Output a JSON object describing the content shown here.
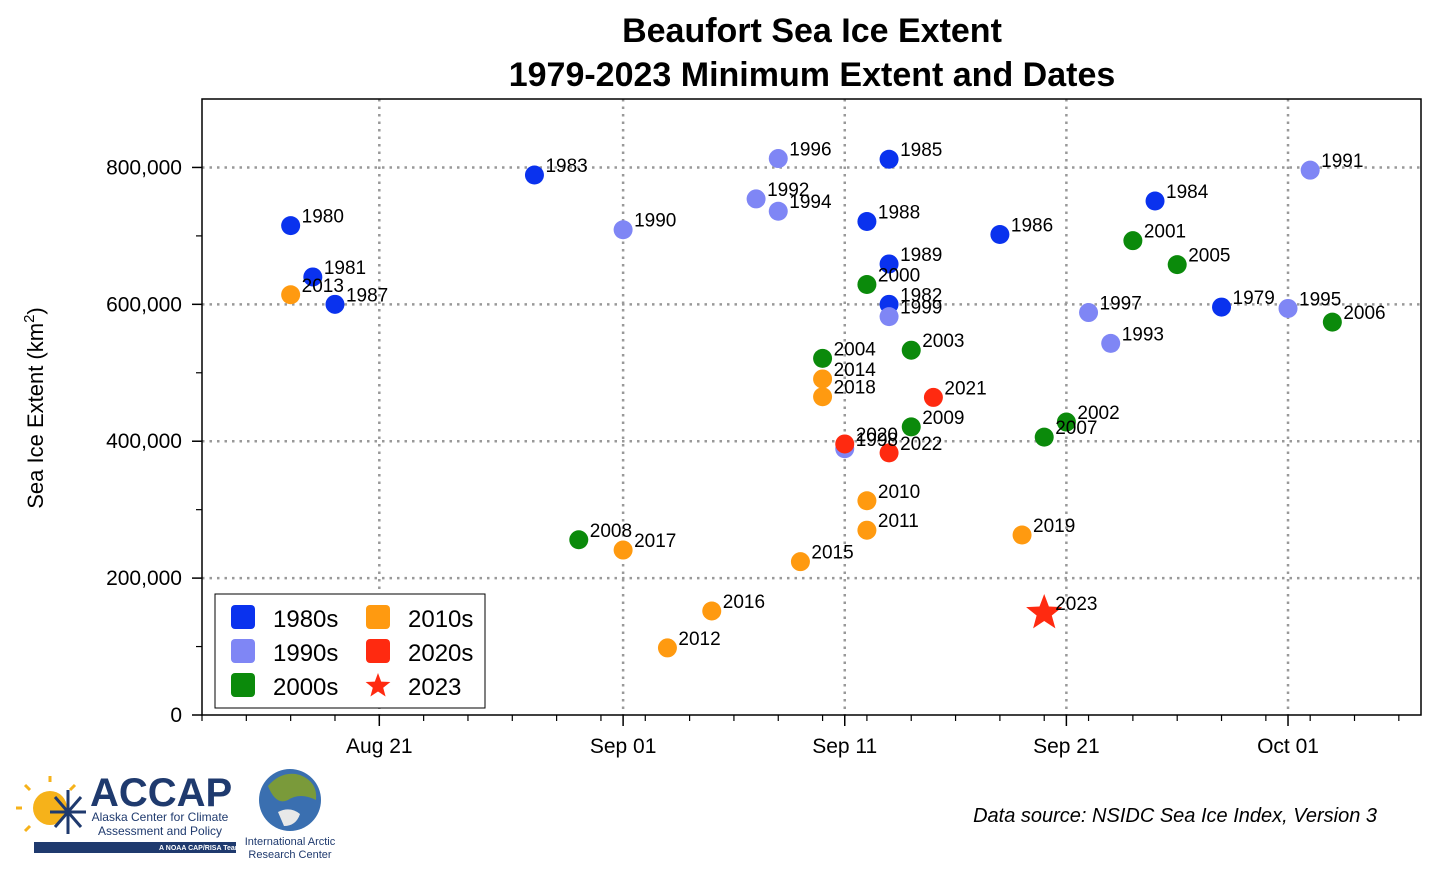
{
  "title_line1": "Beaufort Sea Ice Extent",
  "title_line2": "1979-2023 Minimum Extent and Dates",
  "source": "Data source: NSIDC Sea Ice Index, Version 3",
  "logos": {
    "accap_name": "ACCAP",
    "accap_sub1": "Alaska Center for Climate",
    "accap_sub2": "Assessment and Policy",
    "accap_tag": "A NOAA CAP/RISA Team",
    "iarc_line1": "International Arctic",
    "iarc_line2": "Research Center"
  },
  "colors": {
    "1980s": "#0a32ee",
    "1990s": "#7f86f5",
    "2000s": "#0b8a0b",
    "2010s": "#ff9a10",
    "2020s": "#ff2a10",
    "2023": "#ff2a10"
  },
  "chart_data": {
    "type": "scatter",
    "title": "Beaufort Sea Ice Extent\n1979-2023 Minimum Extent and Dates",
    "xlabel": "",
    "ylabel": "Sea Ice Extent (km²)",
    "ylabel_main": "Sea Ice Extent (km",
    "ylabel_sup": "2",
    "ylabel_close": ")",
    "x_axis": "date",
    "xlim": [
      "2023-08-13",
      "2023-10-07"
    ],
    "ylim": [
      0,
      900000
    ],
    "x_ticks": [
      {
        "date": "2023-08-21",
        "label": "Aug 21"
      },
      {
        "date": "2023-09-01",
        "label": "Sep 01"
      },
      {
        "date": "2023-09-11",
        "label": "Sep 11"
      },
      {
        "date": "2023-09-21",
        "label": "Sep 21"
      },
      {
        "date": "2023-10-01",
        "label": "Oct 01"
      }
    ],
    "y_ticks": [
      {
        "value": 0,
        "label": "0"
      },
      {
        "value": 200000,
        "label": "200,000"
      },
      {
        "value": 400000,
        "label": "400,000"
      },
      {
        "value": 600000,
        "label": "600,000"
      },
      {
        "value": 800000,
        "label": "800,000"
      }
    ],
    "grid": true,
    "legend_position": "bottom-left",
    "legend": [
      {
        "label": "1980s",
        "group": "1980s",
        "marker": "square"
      },
      {
        "label": "2010s",
        "group": "2010s",
        "marker": "square"
      },
      {
        "label": "1990s",
        "group": "1990s",
        "marker": "square"
      },
      {
        "label": "2020s",
        "group": "2020s",
        "marker": "square"
      },
      {
        "label": "2000s",
        "group": "2000s",
        "marker": "square"
      },
      {
        "label": "2023",
        "group": "2023",
        "marker": "star"
      }
    ],
    "points": [
      {
        "label": "1979",
        "date": "2023-09-28",
        "y": 596000,
        "group": "1980s"
      },
      {
        "label": "1980",
        "date": "2023-08-17",
        "y": 715000,
        "group": "1980s"
      },
      {
        "label": "1981",
        "date": "2023-08-18",
        "y": 640000,
        "group": "1980s"
      },
      {
        "label": "1982",
        "date": "2023-09-13",
        "y": 600000,
        "group": "1980s"
      },
      {
        "label": "1983",
        "date": "2023-08-28",
        "y": 789000,
        "group": "1980s"
      },
      {
        "label": "1984",
        "date": "2023-09-25",
        "y": 751000,
        "group": "1980s"
      },
      {
        "label": "1985",
        "date": "2023-09-13",
        "y": 812000,
        "group": "1980s"
      },
      {
        "label": "1986",
        "date": "2023-09-18",
        "y": 702000,
        "group": "1980s"
      },
      {
        "label": "1987",
        "date": "2023-08-19",
        "y": 600000,
        "group": "1980s"
      },
      {
        "label": "1988",
        "date": "2023-09-12",
        "y": 721000,
        "group": "1980s"
      },
      {
        "label": "1989",
        "date": "2023-09-13",
        "y": 659000,
        "group": "1980s"
      },
      {
        "label": "1990",
        "date": "2023-09-01",
        "y": 709000,
        "group": "1990s"
      },
      {
        "label": "1991",
        "date": "2023-10-02",
        "y": 796000,
        "group": "1990s"
      },
      {
        "label": "1992",
        "date": "2023-09-07",
        "y": 754000,
        "group": "1990s"
      },
      {
        "label": "1993",
        "date": "2023-09-23",
        "y": 543000,
        "group": "1990s"
      },
      {
        "label": "1994",
        "date": "2023-09-08",
        "y": 736000,
        "group": "1990s"
      },
      {
        "label": "1995",
        "date": "2023-10-01",
        "y": 594000,
        "group": "1990s"
      },
      {
        "label": "1996",
        "date": "2023-09-08",
        "y": 813000,
        "group": "1990s"
      },
      {
        "label": "1997",
        "date": "2023-09-22",
        "y": 588000,
        "group": "1990s"
      },
      {
        "label": "1998",
        "date": "2023-09-11",
        "y": 389000,
        "group": "1990s"
      },
      {
        "label": "1999",
        "date": "2023-09-13",
        "y": 582000,
        "group": "1990s"
      },
      {
        "label": "2000",
        "date": "2023-09-12",
        "y": 629000,
        "group": "2000s"
      },
      {
        "label": "2001",
        "date": "2023-09-24",
        "y": 693000,
        "group": "2000s"
      },
      {
        "label": "2002",
        "date": "2023-09-21",
        "y": 428000,
        "group": "2000s"
      },
      {
        "label": "2003",
        "date": "2023-09-14",
        "y": 533000,
        "group": "2000s"
      },
      {
        "label": "2004",
        "date": "2023-09-10",
        "y": 521000,
        "group": "2000s"
      },
      {
        "label": "2005",
        "date": "2023-09-26",
        "y": 658000,
        "group": "2000s"
      },
      {
        "label": "2006",
        "date": "2023-10-03",
        "y": 574000,
        "group": "2000s"
      },
      {
        "label": "2007",
        "date": "2023-09-20",
        "y": 406000,
        "group": "2000s"
      },
      {
        "label": "2008",
        "date": "2023-08-30",
        "y": 256000,
        "group": "2000s"
      },
      {
        "label": "2009",
        "date": "2023-09-14",
        "y": 421000,
        "group": "2000s"
      },
      {
        "label": "2010",
        "date": "2023-09-12",
        "y": 313000,
        "group": "2010s"
      },
      {
        "label": "2011",
        "date": "2023-09-12",
        "y": 270000,
        "group": "2010s"
      },
      {
        "label": "2012",
        "date": "2023-09-03",
        "y": 98000,
        "group": "2010s"
      },
      {
        "label": "2013",
        "date": "2023-08-17",
        "y": 614000,
        "group": "2010s"
      },
      {
        "label": "2014",
        "date": "2023-09-10",
        "y": 491000,
        "group": "2010s"
      },
      {
        "label": "2015",
        "date": "2023-09-09",
        "y": 224000,
        "group": "2010s"
      },
      {
        "label": "2016",
        "date": "2023-09-05",
        "y": 152000,
        "group": "2010s"
      },
      {
        "label": "2017",
        "date": "2023-09-01",
        "y": 241000,
        "group": "2010s"
      },
      {
        "label": "2018",
        "date": "2023-09-10",
        "y": 465000,
        "group": "2010s"
      },
      {
        "label": "2019",
        "date": "2023-09-19",
        "y": 263000,
        "group": "2010s"
      },
      {
        "label": "2020",
        "date": "2023-09-11",
        "y": 396000,
        "group": "2020s"
      },
      {
        "label": "2021",
        "date": "2023-09-15",
        "y": 464000,
        "group": "2020s"
      },
      {
        "label": "2022",
        "date": "2023-09-13",
        "y": 383000,
        "group": "2020s"
      },
      {
        "label": "2023",
        "date": "2023-09-20",
        "y": 149000,
        "group": "2023"
      }
    ]
  }
}
